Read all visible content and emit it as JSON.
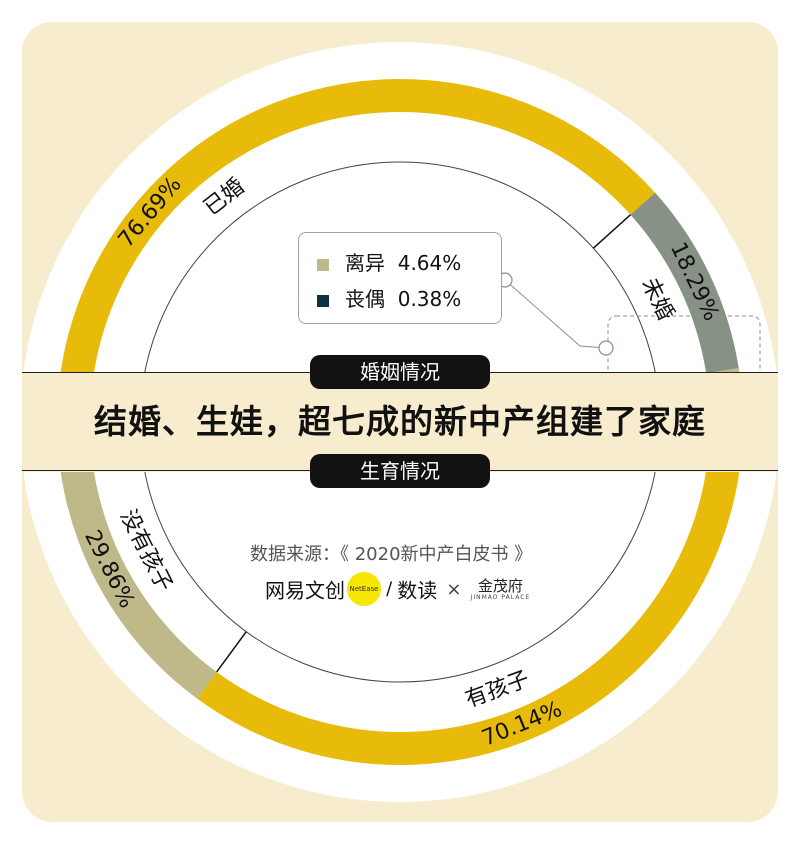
{
  "headline": "结婚、生娃，超七成的新中产组建了家庭",
  "pill_top": "婚姻情况",
  "pill_bottom": "生育情况",
  "source": "数据来源：《 2020新中产白皮书 》",
  "logos": {
    "netease": "网易文创",
    "netease_badge": "NetEase",
    "slash": "/",
    "shudu": "数读",
    "times": "×",
    "jinmao_cn": "金茂府",
    "jinmao_en": "JINMAO PALACE"
  },
  "colors": {
    "background": "#f7eccd",
    "married": "#e8bb0a",
    "unmarried": "#879185",
    "divorced": "#bfb98a",
    "widowed": "#0d3141",
    "has_children": "#e8bb0a",
    "no_children": "#bfb98a"
  },
  "chart_data": [
    {
      "type": "donut",
      "title": "婚姻情况",
      "categories": [
        "已婚",
        "未婚",
        "离异",
        "丧偶"
      ],
      "values": [
        76.69,
        18.29,
        4.64,
        0.38
      ],
      "labels": [
        "76.69%",
        "18.29%",
        "4.64%",
        "0.38%"
      ],
      "legend": [
        {
          "name": "离异",
          "value": "4.64%"
        },
        {
          "name": "丧偶",
          "value": "0.38%"
        }
      ]
    },
    {
      "type": "donut",
      "title": "生育情况",
      "categories": [
        "有孩子",
        "没有孩子"
      ],
      "values": [
        70.14,
        29.86
      ],
      "labels": [
        "70.14%",
        "29.86%"
      ]
    }
  ]
}
